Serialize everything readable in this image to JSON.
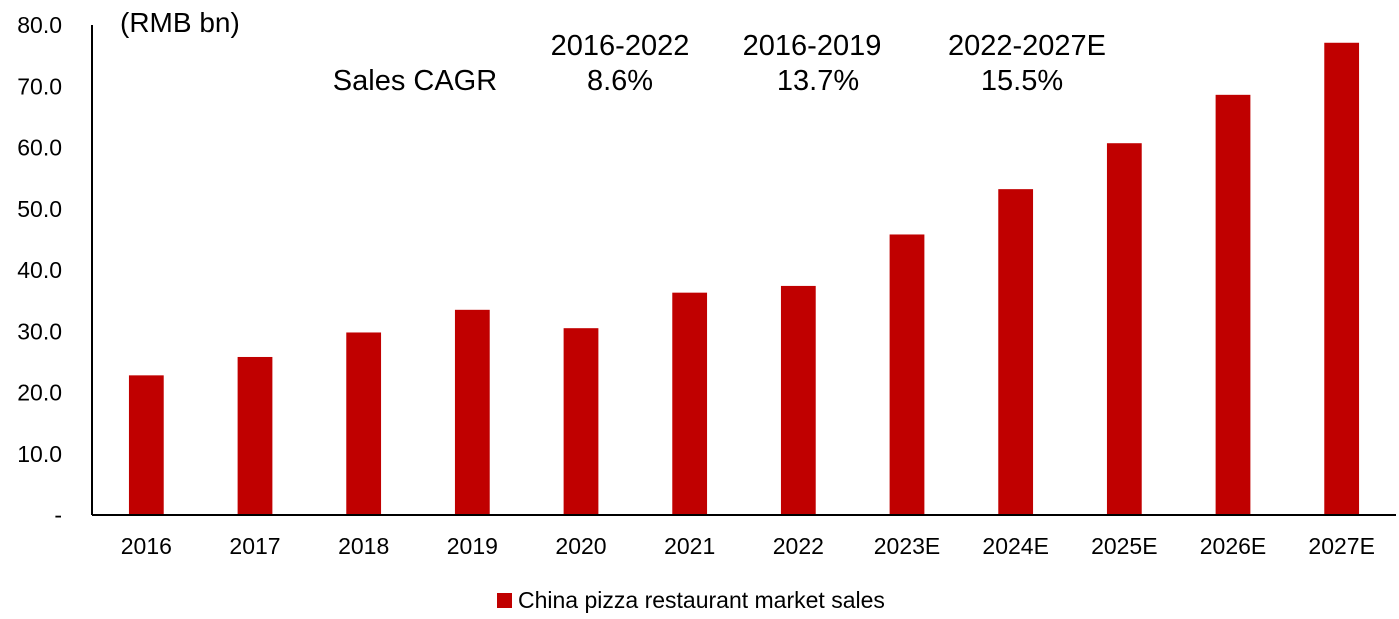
{
  "chart_data": {
    "type": "bar",
    "unit_label": "(RMB bn)",
    "categories": [
      "2016",
      "2017",
      "2018",
      "2019",
      "2020",
      "2021",
      "2022",
      "2023E",
      "2024E",
      "2025E",
      "2026E",
      "2027E"
    ],
    "series": [
      {
        "name": "China pizza restaurant market sales",
        "color": "#C00000",
        "values": [
          22.8,
          25.8,
          29.8,
          33.5,
          30.5,
          36.3,
          37.4,
          45.8,
          53.2,
          60.7,
          68.6,
          77.1
        ]
      }
    ],
    "yticks": [
      "-",
      "10.0",
      "20.0",
      "30.0",
      "40.0",
      "50.0",
      "60.0",
      "70.0",
      "80.0"
    ],
    "ylim": [
      0,
      80
    ],
    "grid": false,
    "legend_position": "bottom",
    "cagr": {
      "label": "Sales CAGR",
      "periods": [
        {
          "period": "2016-2022",
          "value": "8.6%"
        },
        {
          "period": "2016-2019",
          "value": "13.7%"
        },
        {
          "period": "2022-2027E",
          "value": "15.5%"
        }
      ]
    }
  }
}
